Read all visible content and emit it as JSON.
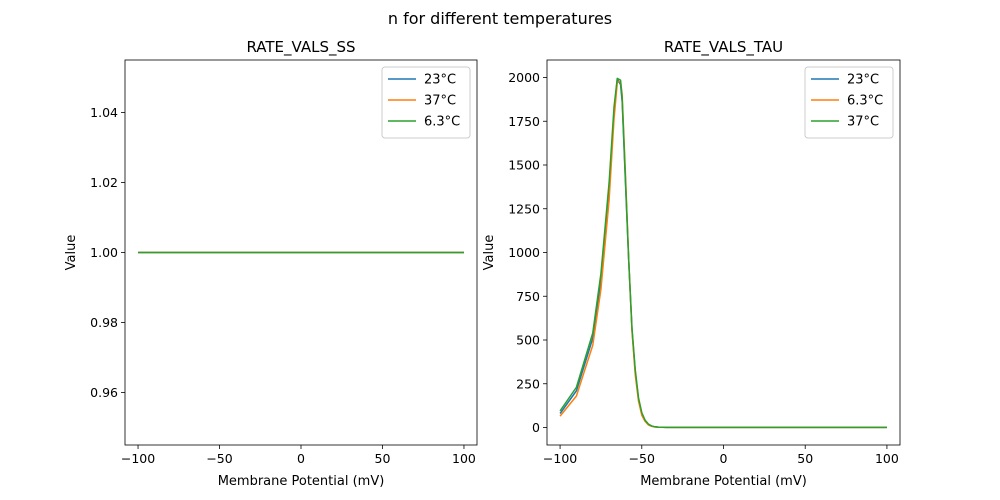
{
  "figure": {
    "suptitle": "n for different temperatures"
  },
  "colors": {
    "c23": "#1f77b4",
    "c37": "#ff7f0e",
    "c63": "#2ca02c"
  },
  "chart_data": [
    {
      "type": "line",
      "title": "RATE_VALS_SS",
      "xlabel": "Membrane Potential (mV)",
      "ylabel": "Value",
      "xlim": [
        -108,
        108
      ],
      "ylim": [
        0.945,
        1.055
      ],
      "xticks": [
        -100,
        -50,
        0,
        50,
        100
      ],
      "xtick_labels": [
        "−100",
        "−50",
        "0",
        "50",
        "100"
      ],
      "yticks": [
        0.96,
        0.98,
        1.0,
        1.02,
        1.04
      ],
      "ytick_labels": [
        "0.96",
        "0.98",
        "1.00",
        "1.02",
        "1.04"
      ],
      "legend_position": "top-right",
      "series": [
        {
          "name": "23°C",
          "color_key": "c23",
          "x": [
            -100,
            100
          ],
          "y": [
            1.0,
            1.0
          ]
        },
        {
          "name": "37°C",
          "color_key": "c37",
          "x": [
            -100,
            100
          ],
          "y": [
            1.0,
            1.0
          ]
        },
        {
          "name": "6.3°C",
          "color_key": "c63",
          "x": [
            -100,
            100
          ],
          "y": [
            1.0,
            1.0
          ]
        }
      ]
    },
    {
      "type": "line",
      "title": "RATE_VALS_TAU",
      "xlabel": "Membrane Potential (mV)",
      "ylabel": "Value",
      "xlim": [
        -108,
        108
      ],
      "ylim": [
        -100,
        2100
      ],
      "xticks": [
        -100,
        -50,
        0,
        50,
        100
      ],
      "xtick_labels": [
        "−100",
        "−50",
        "0",
        "50",
        "100"
      ],
      "yticks": [
        0,
        250,
        500,
        750,
        1000,
        1250,
        1500,
        1750,
        2000
      ],
      "ytick_labels": [
        "0",
        "250",
        "500",
        "750",
        "1000",
        "1250",
        "1500",
        "1750",
        "2000"
      ],
      "legend_position": "top-right",
      "series": [
        {
          "name": "23°C",
          "color_key": "c23",
          "x": [
            -100,
            -90,
            -80,
            -75,
            -70,
            -67,
            -65,
            -63,
            -62,
            -60,
            -58,
            -56,
            -54,
            -52,
            -50,
            -48,
            -46,
            -44,
            -42,
            -40,
            -35,
            0,
            50,
            100
          ],
          "y": [
            80,
            210,
            510,
            840,
            1360,
            1800,
            1990,
            1960,
            1860,
            1400,
            950,
            560,
            320,
            160,
            80,
            40,
            18,
            8,
            4,
            2,
            1,
            1,
            1,
            1
          ]
        },
        {
          "name": "6.3°C",
          "color_key": "c37",
          "x": [
            -100,
            -90,
            -80,
            -75,
            -70,
            -67,
            -65,
            -63,
            -62,
            -60,
            -58,
            -56,
            -54,
            -52,
            -50,
            -48,
            -46,
            -44,
            -42,
            -40,
            -35,
            0,
            50,
            100
          ],
          "y": [
            65,
            180,
            470,
            790,
            1300,
            1760,
            1970,
            1980,
            1900,
            1450,
            960,
            550,
            300,
            150,
            70,
            35,
            15,
            7,
            3,
            2,
            1,
            1,
            1,
            1
          ]
        },
        {
          "name": "37°C",
          "color_key": "c63",
          "x": [
            -100,
            -90,
            -80,
            -75,
            -70,
            -67,
            -65,
            -63,
            -62,
            -60,
            -58,
            -56,
            -54,
            -52,
            -50,
            -48,
            -46,
            -44,
            -42,
            -40,
            -35,
            0,
            50,
            100
          ],
          "y": [
            95,
            230,
            540,
            880,
            1400,
            1830,
            1995,
            1985,
            1880,
            1420,
            960,
            570,
            330,
            170,
            85,
            42,
            20,
            9,
            4,
            2,
            1,
            1,
            1,
            1
          ]
        }
      ]
    }
  ]
}
